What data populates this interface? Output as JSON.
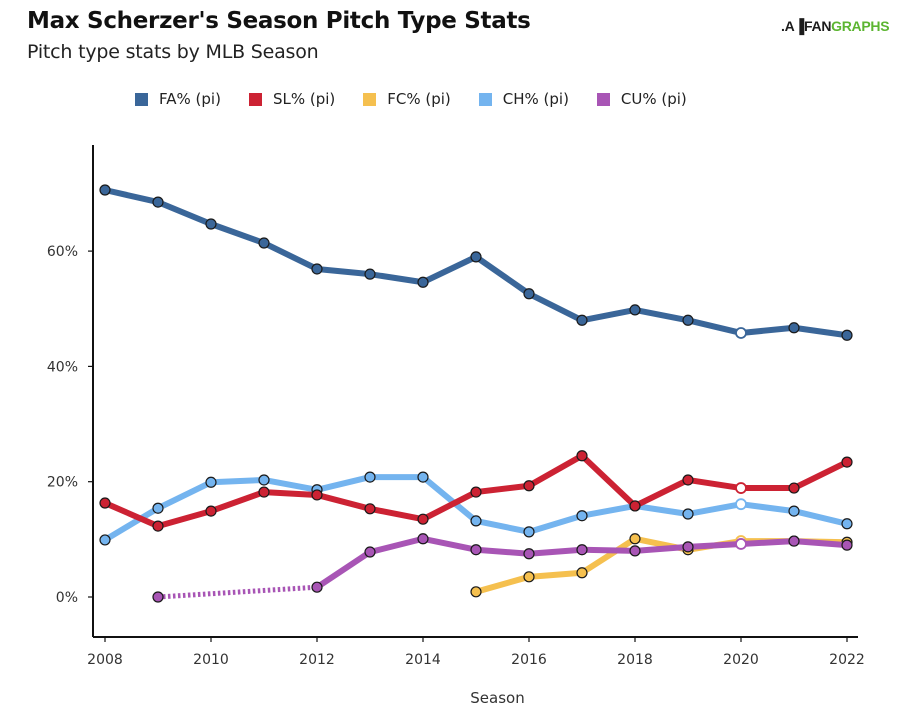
{
  "header": {
    "title": "Max Scherzer's Season Pitch Type Stats",
    "subtitle": "Pitch type stats by MLB Season",
    "logo_mark": ".A▐",
    "logo_fan": "FAN",
    "logo_graphs": "GRAPHS"
  },
  "chart_data": {
    "type": "line",
    "title": "Max Scherzer's Season Pitch Type Stats",
    "subtitle": "Pitch type stats by MLB Season",
    "xlabel": "Season",
    "ylabel": "",
    "xlim": [
      2008,
      2022
    ],
    "ylim": [
      0,
      72
    ],
    "x_ticks": [
      2008,
      2010,
      2012,
      2014,
      2016,
      2018,
      2020,
      2022
    ],
    "x_tick_labels": [
      "2008",
      "2010",
      "2012",
      "2014",
      "2016",
      "2018",
      "2020",
      "2022"
    ],
    "y_ticks": [
      0,
      20,
      40,
      60
    ],
    "y_tick_labels": [
      "0%",
      "20%",
      "40%",
      "60%"
    ],
    "grid": false,
    "legend_position": "top",
    "series": [
      {
        "name": "FA% (pi)",
        "color": "#3a6699",
        "x": [
          2008,
          2009,
          2010,
          2011,
          2012,
          2013,
          2014,
          2015,
          2016,
          2017,
          2018,
          2019,
          2020,
          2021,
          2022
        ],
        "values": [
          70.6,
          68.5,
          64.7,
          61.4,
          56.9,
          56.0,
          54.6,
          59.0,
          52.6,
          48.0,
          49.8,
          48.0,
          45.8,
          46.7,
          45.4
        ],
        "hollow_points": [
          2020
        ]
      },
      {
        "name": "SL% (pi)",
        "color": "#cc2233",
        "x": [
          2008,
          2009,
          2010,
          2011,
          2012,
          2013,
          2014,
          2015,
          2016,
          2017,
          2018,
          2019,
          2020,
          2021,
          2022
        ],
        "values": [
          16.3,
          12.3,
          14.9,
          18.2,
          17.7,
          15.3,
          13.5,
          18.2,
          19.3,
          24.5,
          15.8,
          20.3,
          18.9,
          18.9,
          23.4
        ],
        "hollow_points": [
          2020
        ]
      },
      {
        "name": "FC% (pi)",
        "color": "#f5c04f",
        "x": [
          2015,
          2016,
          2017,
          2018,
          2019,
          2020,
          2021,
          2022
        ],
        "values": [
          0.9,
          3.5,
          4.2,
          10.1,
          8.2,
          9.7,
          9.7,
          9.5
        ],
        "hollow_points": [
          2020
        ]
      },
      {
        "name": "CH% (pi)",
        "color": "#74b4ef",
        "x": [
          2008,
          2009,
          2010,
          2011,
          2012,
          2013,
          2014,
          2015,
          2016,
          2017,
          2018,
          2019,
          2020,
          2021,
          2022
        ],
        "values": [
          9.9,
          15.4,
          19.9,
          20.3,
          18.6,
          20.8,
          20.8,
          13.2,
          11.3,
          14.1,
          15.8,
          14.4,
          16.1,
          14.9,
          12.7
        ],
        "hollow_points": [
          2020
        ]
      },
      {
        "name": "CU% (pi)",
        "color": "#a855b5",
        "x": [
          2009,
          2012,
          2013,
          2014,
          2015,
          2016,
          2017,
          2018,
          2019,
          2020,
          2021,
          2022
        ],
        "values": [
          0.0,
          1.7,
          7.8,
          10.1,
          8.2,
          7.5,
          8.2,
          8.0,
          8.7,
          9.2,
          9.7,
          9.0
        ],
        "hollow_points": [
          2020
        ],
        "dotted_segments": [
          [
            2009,
            2012
          ]
        ]
      }
    ]
  }
}
